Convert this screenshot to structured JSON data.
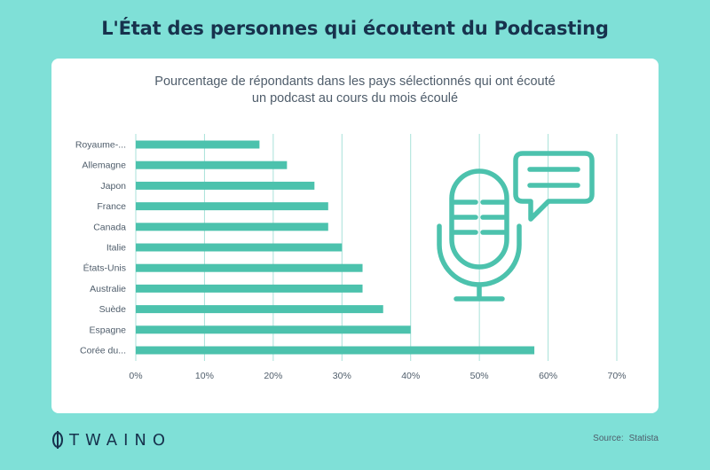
{
  "title": "L'État des personnes qui écoutent du Podcasting",
  "subtitle_line1": "Pourcentage de répondants dans les pays sélectionnés qui ont écouté",
  "subtitle_line2": "un podcast au cours du mois écoulé",
  "brand": "TWAINO",
  "source_label": "Source:",
  "source_value": "Statista",
  "colors": {
    "bar": "#4cc2ad",
    "background": "#7fe0d7",
    "title": "#17324d",
    "illustration": "#4cc2ad"
  },
  "illustration_icons": [
    "microphone-icon",
    "speech-bubble-icon"
  ],
  "chart_data": {
    "type": "bar",
    "orientation": "horizontal",
    "categories": [
      "Royaume-...",
      "Allemagne",
      "Japon",
      "France",
      "Canada",
      "Italie",
      "États-Unis",
      "Australie",
      "Suède",
      "Espagne",
      "Corée du..."
    ],
    "values": [
      18,
      22,
      26,
      28,
      28,
      30,
      33,
      33,
      36,
      40,
      58
    ],
    "xlim": [
      0,
      70
    ],
    "xticks": [
      0,
      10,
      20,
      30,
      40,
      50,
      60,
      70
    ],
    "xtick_labels": [
      "0%",
      "10%",
      "20%",
      "30%",
      "40%",
      "50%",
      "60%",
      "70%"
    ],
    "grid": "vertical"
  }
}
